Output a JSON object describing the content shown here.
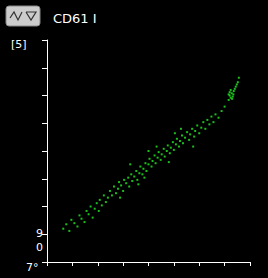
{
  "chart_data": {
    "type": "scatter",
    "title": "CD61 I",
    "subtitle": "[5]",
    "annotations": [
      "9",
      "0",
      "7°"
    ],
    "x": [
      80,
      95,
      110,
      120,
      135,
      150,
      160,
      170,
      185,
      195,
      205,
      215,
      225,
      235,
      245,
      255,
      260,
      270,
      280,
      290,
      300,
      310,
      320,
      330,
      340,
      350,
      355,
      365,
      375,
      380,
      390,
      400,
      405,
      415,
      420,
      430,
      440,
      445,
      455,
      460,
      470,
      475,
      485,
      490,
      500,
      505,
      515,
      520,
      530,
      535,
      545,
      550,
      560,
      565,
      575,
      580,
      590,
      595,
      605,
      610,
      620,
      625,
      635,
      640,
      650,
      655,
      665,
      670,
      680,
      690,
      700,
      705,
      715,
      725,
      730,
      740,
      750,
      760,
      770,
      780,
      790,
      800,
      810,
      820,
      830,
      845,
      860,
      875,
      360,
      410,
      480,
      540,
      600,
      660,
      720,
      500,
      450,
      630,
      895,
      900,
      905,
      910,
      915,
      920,
      905,
      895,
      912,
      918,
      925,
      900,
      930,
      940,
      945,
      935
    ],
    "y": [
      150,
      170,
      140,
      190,
      175,
      160,
      210,
      195,
      180,
      230,
      215,
      250,
      200,
      240,
      265,
      230,
      280,
      255,
      300,
      270,
      290,
      320,
      300,
      340,
      310,
      330,
      360,
      345,
      320,
      370,
      355,
      380,
      340,
      395,
      365,
      385,
      410,
      370,
      400,
      430,
      395,
      420,
      445,
      410,
      440,
      465,
      430,
      455,
      480,
      445,
      470,
      495,
      460,
      485,
      510,
      475,
      500,
      525,
      490,
      515,
      540,
      505,
      530,
      555,
      520,
      545,
      570,
      535,
      560,
      585,
      550,
      575,
      600,
      565,
      590,
      615,
      580,
      605,
      630,
      600,
      640,
      620,
      655,
      630,
      665,
      650,
      680,
      700,
      290,
      440,
      380,
      520,
      450,
      600,
      520,
      500,
      350,
      580,
      730,
      750,
      740,
      760,
      745,
      770,
      775,
      755,
      735,
      755,
      780,
      765,
      790,
      810,
      830,
      800
    ],
    "color": "#22ee22",
    "xlim": [
      0,
      1000
    ],
    "ylim": [
      0,
      1000
    ],
    "xticks": [
      0,
      125,
      250,
      375,
      500,
      625,
      750,
      875,
      1000
    ],
    "yticks": [
      0,
      125,
      250,
      375,
      500,
      625,
      750,
      875,
      1000
    ],
    "tick_labels": false,
    "grid": false
  }
}
